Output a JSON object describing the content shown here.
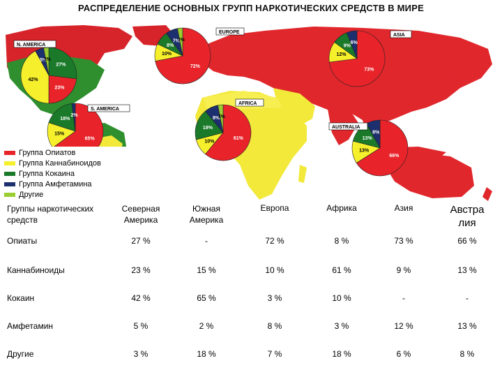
{
  "title": "РАСПРЕДЕЛЕНИЕ ОСНОВНЫХ ГРУПП НАРКОТИЧЕСКИХ СРЕДСТВ В МИРЕ",
  "colors": {
    "opiates": "#e8232a",
    "cannabis": "#f5ef2c",
    "cocaine": "#1a7a2a",
    "amphetamine": "#1c2f6e",
    "other": "#9acd32"
  },
  "map": {
    "regions": [
      {
        "label": "N. AMERICA",
        "slices": [
          "27%",
          "23%",
          "42%",
          "5%",
          "3%"
        ]
      },
      {
        "label": "EUROPE",
        "slices": [
          "72%",
          "10%",
          "8%",
          "7%",
          "3%"
        ]
      },
      {
        "label": "ASIA",
        "slices": [
          "73%",
          "12%",
          "9%",
          "6%"
        ]
      },
      {
        "label": "S. AMERICA",
        "slices": [
          "65%",
          "15%",
          "18%",
          "2%"
        ]
      },
      {
        "label": "AFRICA",
        "slices": [
          "61%",
          "10%",
          "18%",
          "8%",
          "3%"
        ]
      },
      {
        "label": "AUSTRALIA",
        "slices": [
          "66%",
          "13%",
          "13%",
          "8%"
        ]
      }
    ]
  },
  "legend": [
    {
      "label": "Группа Опиатов",
      "color": "#e8232a"
    },
    {
      "label": "Группа Каннабиноидов",
      "color": "#f5ef2c"
    },
    {
      "label": "Группа Кокаина",
      "color": "#1a7a2a"
    },
    {
      "label": "Группа Амфетамина",
      "color": "#1c2f6e"
    },
    {
      "label": "Другие",
      "color": "#9acd32"
    }
  ],
  "table": {
    "header": {
      "group": "Группы наркотических средств",
      "na": "Северная Америка",
      "sa": "Южная Америка",
      "eu": "Европа",
      "af": "Африка",
      "as": "Азия",
      "au": "Австра лия"
    },
    "rows": [
      {
        "name": "Опиаты",
        "values": [
          "27 %",
          "-",
          "72 %",
          "8 %",
          "73 %",
          "66 %"
        ]
      },
      {
        "name": "Каннабиноиды",
        "values": [
          "23 %",
          "15 %",
          "10 %",
          "61 %",
          "9 %",
          "13 %"
        ]
      },
      {
        "name": "Кокаин",
        "values": [
          "42 %",
          "65 %",
          "3 %",
          "10 %",
          "-",
          "-"
        ]
      },
      {
        "name": "Амфетамин",
        "values": [
          "5 %",
          "2 %",
          "8 %",
          "3 %",
          "12 %",
          "13 %"
        ]
      },
      {
        "name": "Другие",
        "values": [
          "3 %",
          "18 %",
          "7 %",
          "18 %",
          "6 %",
          "8 %"
        ]
      }
    ]
  }
}
